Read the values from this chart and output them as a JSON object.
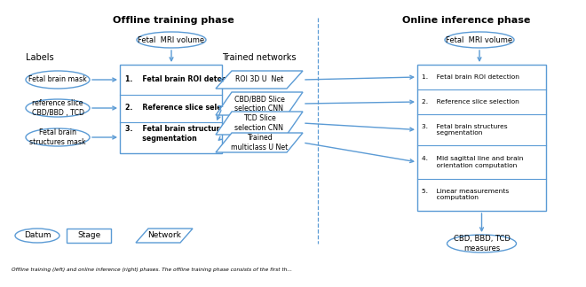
{
  "title_left": "Offline training phase",
  "title_right": "Online inference phase",
  "bg_color": "#ffffff",
  "border_color": "#5b9bd5",
  "arrow_color": "#5b9bd5",
  "text_color": "#000000",
  "caption": "Offline training (left) and online inference (right) phases. The offline training phase consists of the first th...",
  "labels_text": "Labels",
  "trained_networks_text": "Trained networks",
  "offline_mri": "Fetal  MRI volume",
  "online_mri": "Fetal  MRI volume",
  "label_ellipses": [
    "Fetal brain mask",
    "reference slice\nCBD/BBD , TCD",
    "Fetal brain\nstructures mask"
  ],
  "stage_offline": [
    "1.    Fetal brain ROI detection",
    "2.    Reference slice selection",
    "3.    Fetal brain structures\n       segmentation"
  ],
  "networks": [
    "ROI 3D U  Net",
    "CBD/BBD Slice\nselection CNN",
    "TCD Slice\nselection CNN",
    "Trained\nmulticlass U Net"
  ],
  "stage_online": [
    "1.    Fetal brain ROI detection",
    "2.    Reference slice selection",
    "3.    Fetal brain structures\n       segmentation",
    "4.    Mid sagittal line and brain\n       orientation computation",
    "5.    Linear measurements\n       computation"
  ],
  "output_ellipse": "CBD, BBD, TCD\nmeasures",
  "legend_datum": "Datum",
  "legend_stage": "Stage",
  "legend_network": "Network"
}
